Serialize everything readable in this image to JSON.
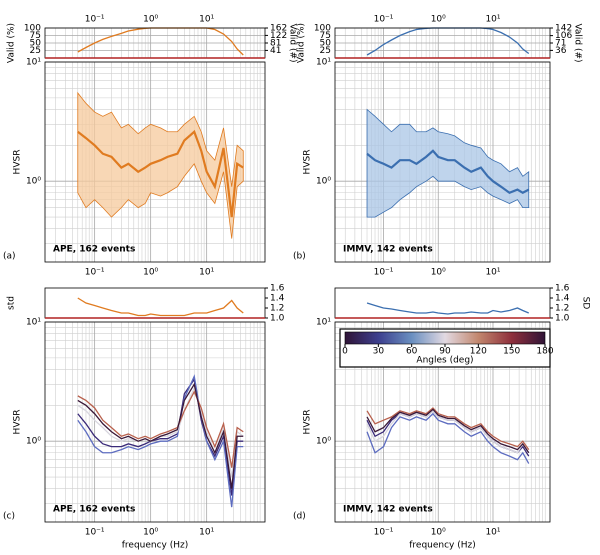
{
  "chart_data": [
    {
      "type": "line",
      "ylabel": "Valid (%)",
      "y2label": "Valid (#)",
      "x": [
        0.05,
        0.07,
        0.1,
        0.14,
        0.2,
        0.3,
        0.4,
        0.6,
        0.8,
        1,
        1.5,
        2,
        3,
        4,
        6,
        8,
        10,
        14,
        20,
        28,
        35,
        45
      ],
      "series": [
        {
          "color": "#e07b20",
          "values": [
            20,
            35,
            50,
            62,
            72,
            82,
            90,
            96,
            99,
            100,
            100,
            100,
            100,
            100,
            100,
            100,
            100,
            95,
            80,
            55,
            30,
            10
          ]
        }
      ],
      "xlim": [
        0.013,
        110
      ],
      "xlog": true,
      "xticks": [
        {
          "value": 0.1,
          "label": "10⁻¹"
        },
        {
          "value": 1,
          "label": "10⁰"
        },
        {
          "value": 10,
          "label": "10¹"
        }
      ],
      "xtick_side": "top",
      "ylim": [
        0,
        100
      ],
      "yticks": [
        25,
        50,
        75,
        100
      ],
      "ytick_color": "#1f3fa0",
      "y2lim": [
        0,
        162
      ],
      "y2ticks": [
        41,
        81,
        122,
        162
      ],
      "y2tick_color": "#b22222",
      "baseline_color": "#b22222",
      "grid": true,
      "minor_grid": true
    },
    {
      "type": "band",
      "ylabel": "HVSR",
      "tag": "(a)",
      "annotation": "APE,  162 events",
      "x": [
        0.05,
        0.07,
        0.1,
        0.14,
        0.2,
        0.3,
        0.4,
        0.6,
        0.8,
        1,
        1.5,
        2,
        3,
        4,
        6,
        8,
        10,
        14,
        20,
        28,
        35,
        45
      ],
      "series": [
        {
          "color": "#e07b20",
          "fill": "#f6c99c",
          "values": [
            2.6,
            2.3,
            2.0,
            1.7,
            1.6,
            1.3,
            1.4,
            1.2,
            1.3,
            1.4,
            1.5,
            1.6,
            1.7,
            2.2,
            2.6,
            1.8,
            1.2,
            0.9,
            1.9,
            0.5,
            1.4,
            1.3
          ],
          "lower": [
            0.8,
            0.6,
            0.7,
            0.6,
            0.5,
            0.6,
            0.7,
            0.6,
            0.65,
            0.8,
            0.75,
            0.8,
            0.9,
            1.1,
            1.4,
            1.0,
            0.8,
            0.65,
            1.2,
            0.33,
            0.9,
            1.0
          ],
          "upper": [
            5.5,
            4.5,
            3.8,
            3.5,
            3.8,
            2.8,
            3.0,
            2.5,
            2.8,
            3.0,
            2.8,
            2.6,
            2.6,
            3.0,
            3.5,
            2.6,
            1.8,
            1.5,
            2.8,
            0.9,
            2.0,
            1.8
          ]
        }
      ],
      "xlim": [
        0.013,
        110
      ],
      "xlog": true,
      "xticks": [
        {
          "value": 0.1,
          "label": "10⁻¹"
        },
        {
          "value": 1,
          "label": "10⁰"
        },
        {
          "value": 10,
          "label": "10¹"
        }
      ],
      "xtick_side": "bottom",
      "ylim": [
        0.21,
        10
      ],
      "ylog": true,
      "yticks": [
        {
          "value": 1,
          "label": "10⁰"
        },
        {
          "value": 10,
          "label": "10¹"
        }
      ],
      "grid": true,
      "minor_grid": true
    },
    {
      "type": "line",
      "ylabel": "Valid (%)",
      "y2label": "Valid (#)",
      "x": [
        0.05,
        0.07,
        0.1,
        0.14,
        0.2,
        0.3,
        0.4,
        0.6,
        0.8,
        1,
        1.5,
        2,
        3,
        4,
        6,
        8,
        10,
        14,
        20,
        28,
        35,
        45
      ],
      "series": [
        {
          "color": "#3b6fb0",
          "values": [
            10,
            25,
            45,
            60,
            75,
            88,
            95,
            99,
            100,
            100,
            100,
            100,
            100,
            100,
            100,
            98,
            95,
            85,
            70,
            50,
            30,
            15
          ]
        }
      ],
      "xlim": [
        0.013,
        110
      ],
      "xlog": true,
      "xticks": [
        {
          "value": 0.1,
          "label": "10⁻¹"
        },
        {
          "value": 1,
          "label": "10⁰"
        },
        {
          "value": 10,
          "label": "10¹"
        }
      ],
      "xtick_side": "top",
      "ylim": [
        0,
        100
      ],
      "yticks": [
        25,
        50,
        75,
        100
      ],
      "ytick_color": "#1f3fa0",
      "y2lim": [
        0,
        142
      ],
      "y2ticks": [
        36,
        71,
        106,
        142
      ],
      "y2tick_color": "#b22222",
      "baseline_color": "#b22222",
      "grid": true,
      "minor_grid": true
    },
    {
      "type": "band",
      "ylabel": "HVSR",
      "tag": "(b)",
      "annotation": "IMMV, 142 events",
      "x": [
        0.05,
        0.07,
        0.1,
        0.14,
        0.2,
        0.3,
        0.4,
        0.6,
        0.8,
        1,
        1.5,
        2,
        3,
        4,
        6,
        8,
        10,
        14,
        20,
        28,
        35,
        45
      ],
      "series": [
        {
          "color": "#3b6fb0",
          "fill": "#aac5e5",
          "values": [
            1.7,
            1.5,
            1.4,
            1.3,
            1.5,
            1.5,
            1.4,
            1.6,
            1.8,
            1.6,
            1.5,
            1.5,
            1.3,
            1.2,
            1.3,
            1.1,
            1.0,
            0.9,
            0.8,
            0.85,
            0.8,
            0.85
          ],
          "lower": [
            0.5,
            0.5,
            0.55,
            0.6,
            0.7,
            0.8,
            0.9,
            1.0,
            1.1,
            1.0,
            1.0,
            1.0,
            0.9,
            0.85,
            0.9,
            0.8,
            0.75,
            0.7,
            0.65,
            0.7,
            0.6,
            0.6
          ],
          "upper": [
            4.0,
            3.5,
            3.0,
            2.6,
            3.0,
            3.0,
            2.6,
            2.6,
            2.8,
            2.6,
            2.5,
            2.4,
            2.1,
            2.0,
            1.9,
            1.6,
            1.5,
            1.4,
            1.2,
            1.3,
            1.1,
            1.2
          ]
        }
      ],
      "xlim": [
        0.013,
        110
      ],
      "xlog": true,
      "xticks": [
        {
          "value": 0.1,
          "label": "10⁻¹"
        },
        {
          "value": 1,
          "label": "10⁰"
        },
        {
          "value": 10,
          "label": "10¹"
        }
      ],
      "xtick_side": "bottom",
      "ylim": [
        0.21,
        10
      ],
      "ylog": true,
      "yticks": [
        {
          "value": 1,
          "label": "10⁰"
        },
        {
          "value": 10,
          "label": "10¹"
        }
      ],
      "grid": true,
      "minor_grid": true
    },
    {
      "type": "line",
      "ylabel": "std",
      "x": [
        0.05,
        0.07,
        0.1,
        0.14,
        0.2,
        0.3,
        0.4,
        0.6,
        0.8,
        1,
        1.5,
        2,
        3,
        4,
        6,
        8,
        10,
        14,
        20,
        28,
        35,
        45
      ],
      "series": [
        {
          "color": "#e07b20",
          "values": [
            1.4,
            1.3,
            1.25,
            1.2,
            1.15,
            1.1,
            1.1,
            1.05,
            1.05,
            1.08,
            1.05,
            1.05,
            1.05,
            1.05,
            1.1,
            1.1,
            1.1,
            1.15,
            1.2,
            1.35,
            1.2,
            1.1
          ]
        }
      ],
      "xlim": [
        0.013,
        110
      ],
      "xlog": true,
      "ylim": [
        1.0,
        1.6
      ],
      "yticks": [
        {
          "value": 1,
          "label": "1.0"
        },
        1.2,
        1.4,
        1.6
      ],
      "ytick_side": "right",
      "ytick_color": "#1f3fa0",
      "baseline_color": "#b22222"
    },
    {
      "type": "multiline",
      "ylabel": "HVSR",
      "xlabel": "frequency (Hz)",
      "tag": "(c)",
      "annotation": "APE, 162 events",
      "x": [
        0.05,
        0.07,
        0.1,
        0.14,
        0.2,
        0.3,
        0.4,
        0.6,
        0.8,
        1,
        1.5,
        2,
        3,
        4,
        6,
        8,
        10,
        14,
        20,
        28,
        35,
        45
      ],
      "series": [
        {
          "color": "#3a2a78",
          "values": [
            1.7,
            1.4,
            1.1,
            0.95,
            0.9,
            0.9,
            0.95,
            0.9,
            0.95,
            1.0,
            1.05,
            1.05,
            1.15,
            2.5,
            3.3,
            1.5,
            1.0,
            0.75,
            1.1,
            0.35,
            1.0,
            1.0
          ]
        },
        {
          "color": "#5d6cc0",
          "values": [
            1.5,
            1.2,
            0.9,
            0.8,
            0.8,
            0.85,
            0.9,
            0.85,
            0.9,
            0.95,
            1.0,
            1.0,
            1.1,
            2.3,
            3.5,
            1.6,
            1.0,
            0.7,
            1.0,
            0.28,
            0.9,
            0.9
          ]
        },
        {
          "color": "#d8d6df",
          "values": [
            2.0,
            1.8,
            1.5,
            1.3,
            1.1,
            1.0,
            1.05,
            1.0,
            1.05,
            1.0,
            1.1,
            1.1,
            1.2,
            1.8,
            2.8,
            1.8,
            1.2,
            0.8,
            1.3,
            0.5,
            1.2,
            1.1
          ]
        },
        {
          "color": "#b8604c",
          "values": [
            2.4,
            2.2,
            1.9,
            1.5,
            1.3,
            1.1,
            1.15,
            1.05,
            1.1,
            1.05,
            1.15,
            1.2,
            1.3,
            1.8,
            2.6,
            1.9,
            1.3,
            0.9,
            1.4,
            0.6,
            1.3,
            1.2
          ]
        },
        {
          "color": "#3a1838",
          "values": [
            2.2,
            2.0,
            1.7,
            1.4,
            1.2,
            1.05,
            1.1,
            1.0,
            1.05,
            1.0,
            1.1,
            1.15,
            1.25,
            2.2,
            3.0,
            1.6,
            1.1,
            0.8,
            1.2,
            0.4,
            1.1,
            1.1
          ]
        }
      ],
      "xlim": [
        0.013,
        110
      ],
      "xlog": true,
      "xticks": [
        {
          "value": 0.1,
          "label": "10⁻¹"
        },
        {
          "value": 1,
          "label": "10⁰"
        },
        {
          "value": 10,
          "label": "10¹"
        }
      ],
      "xtick_side": "bottom",
      "ylim": [
        0.21,
        10
      ],
      "ylog": true,
      "yticks": [
        {
          "value": 1,
          "label": "10⁰"
        },
        {
          "value": 10,
          "label": "10¹"
        }
      ],
      "grid": true,
      "minor_grid": true
    },
    {
      "type": "line",
      "y2label": "SD",
      "x": [
        0.05,
        0.07,
        0.1,
        0.14,
        0.2,
        0.3,
        0.4,
        0.6,
        0.8,
        1,
        1.5,
        2,
        3,
        4,
        6,
        8,
        10,
        14,
        20,
        28,
        35,
        45
      ],
      "series": [
        {
          "color": "#3b6fb0",
          "values": [
            1.3,
            1.25,
            1.2,
            1.18,
            1.15,
            1.12,
            1.1,
            1.1,
            1.12,
            1.1,
            1.08,
            1.1,
            1.1,
            1.12,
            1.1,
            1.1,
            1.15,
            1.12,
            1.15,
            1.2,
            1.15,
            1.1
          ]
        }
      ],
      "xlim": [
        0.013,
        110
      ],
      "xlog": true,
      "ylim": [
        1.0,
        1.6
      ],
      "yticks": [
        {
          "value": 1,
          "label": "1.0"
        },
        1.2,
        1.4,
        1.6
      ],
      "ytick_side": "right",
      "ytick_color": "#1f3fa0",
      "baseline_color": "#b22222"
    },
    {
      "type": "multiline",
      "ylabel": "HVSR",
      "xlabel": "frequency (Hz)",
      "tag": "(d)",
      "annotation": "IMMV, 142 events",
      "x": [
        0.05,
        0.07,
        0.1,
        0.14,
        0.2,
        0.3,
        0.4,
        0.6,
        0.8,
        1,
        1.5,
        2,
        3,
        4,
        6,
        8,
        10,
        14,
        20,
        28,
        35,
        45
      ],
      "series": [
        {
          "color": "#3a2a78",
          "values": [
            1.5,
            1.1,
            1.2,
            1.5,
            1.7,
            1.6,
            1.7,
            1.6,
            1.8,
            1.6,
            1.5,
            1.5,
            1.3,
            1.2,
            1.3,
            1.1,
            1.0,
            0.9,
            0.85,
            0.8,
            0.9,
            0.75
          ]
        },
        {
          "color": "#5d6cc0",
          "values": [
            1.2,
            0.8,
            0.9,
            1.3,
            1.6,
            1.5,
            1.6,
            1.5,
            1.7,
            1.5,
            1.4,
            1.4,
            1.2,
            1.1,
            1.2,
            1.0,
            0.9,
            0.8,
            0.75,
            0.7,
            0.8,
            0.65
          ]
        },
        {
          "color": "#d8d6df",
          "values": [
            1.4,
            1.0,
            1.1,
            1.4,
            1.7,
            1.6,
            1.7,
            1.6,
            1.8,
            1.6,
            1.5,
            1.5,
            1.3,
            1.2,
            1.3,
            1.1,
            1.0,
            0.9,
            0.85,
            0.8,
            0.95,
            0.8
          ]
        },
        {
          "color": "#b8604c",
          "values": [
            1.8,
            1.4,
            1.5,
            1.6,
            1.8,
            1.7,
            1.8,
            1.7,
            1.9,
            1.7,
            1.6,
            1.6,
            1.4,
            1.3,
            1.4,
            1.2,
            1.1,
            1.0,
            0.95,
            0.9,
            1.0,
            0.85
          ]
        },
        {
          "color": "#3a1838",
          "values": [
            1.6,
            1.2,
            1.3,
            1.55,
            1.75,
            1.65,
            1.75,
            1.65,
            1.85,
            1.65,
            1.55,
            1.55,
            1.35,
            1.25,
            1.35,
            1.15,
            1.05,
            0.95,
            0.9,
            0.85,
            0.95,
            0.8
          ]
        }
      ],
      "xlim": [
        0.013,
        110
      ],
      "xlog": true,
      "xticks": [
        {
          "value": 0.1,
          "label": "10⁻¹"
        },
        {
          "value": 1,
          "label": "10⁰"
        },
        {
          "value": 10,
          "label": "10¹"
        }
      ],
      "xtick_side": "bottom",
      "ylim": [
        0.21,
        10
      ],
      "ylog": true,
      "yticks": [
        {
          "value": 1,
          "label": "10⁰"
        },
        {
          "value": 10,
          "label": "10¹"
        }
      ],
      "grid": true,
      "minor_grid": true,
      "colorbar": {
        "label": "Angles (deg)",
        "lim": [
          0,
          180
        ],
        "ticks": [
          0,
          30,
          60,
          90,
          120,
          150,
          180
        ],
        "colors": [
          "#301437",
          "#3d3f8e",
          "#6a8fc0",
          "#e2d9e2",
          "#c2876e",
          "#8e2f3c",
          "#301437"
        ]
      }
    }
  ]
}
